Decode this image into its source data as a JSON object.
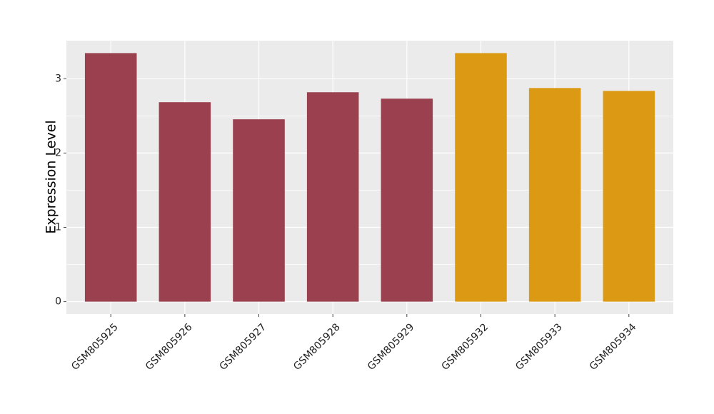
{
  "chart_data": {
    "type": "bar",
    "y_label": "Expression Level",
    "categories": [
      "GSM805925",
      "GSM805926",
      "GSM805927",
      "GSM805928",
      "GSM805929",
      "GSM805932",
      "GSM805933",
      "GSM805934"
    ],
    "values": [
      3.345,
      2.684,
      2.454,
      2.818,
      2.732,
      3.345,
      2.875,
      2.836
    ],
    "colors": [
      "#9a404e",
      "#9a404e",
      "#9a404e",
      "#9a404e",
      "#9a404e",
      "#dc9a14",
      "#dc9a14",
      "#dc9a14"
    ],
    "ylim": [
      -0.167,
      3.512
    ],
    "yticks": [
      0,
      1,
      2,
      3
    ],
    "minor_yticks": [
      0.5,
      1.5,
      2.5
    ],
    "grid": true
  }
}
